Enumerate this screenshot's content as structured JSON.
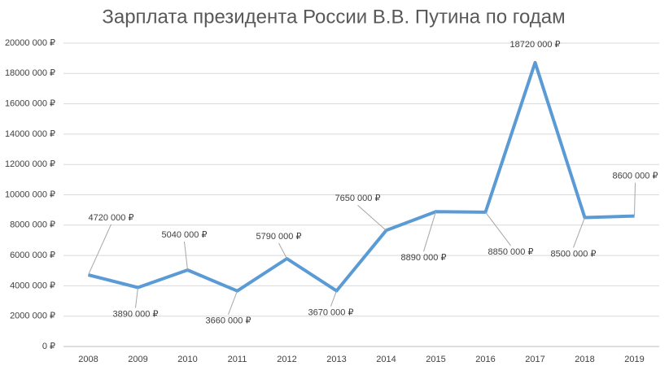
{
  "chart_data": {
    "type": "line",
    "title": "Зарплата президента России В.В. Путина по годам",
    "categories": [
      "2008",
      "2009",
      "2010",
      "2011",
      "2012",
      "2013",
      "2014",
      "2015",
      "2016",
      "2017",
      "2018",
      "2019"
    ],
    "series": [
      {
        "name": "Зарплата",
        "color": "#5b9bd5",
        "values": [
          4720000,
          3890000,
          5040000,
          3660000,
          5790000,
          3670000,
          7650000,
          8890000,
          8850000,
          18720000,
          8500000,
          8600000
        ],
        "value_labels": [
          "4720 000 ₽",
          "3890 000 ₽",
          "5040 000 ₽",
          "3660 000 ₽",
          "5790 000 ₽",
          "3670 000 ₽",
          "7650 000 ₽",
          "8890 000 ₽",
          "8850 000 ₽",
          "18720 000 ₽",
          "8500 000 ₽",
          "8600 000 ₽"
        ]
      }
    ],
    "ylim": [
      0,
      20000000
    ],
    "yticks": [
      {
        "value": 0,
        "label": "0 ₽"
      },
      {
        "value": 2000000,
        "label": "2000 000 ₽"
      },
      {
        "value": 4000000,
        "label": "4000 000 ₽"
      },
      {
        "value": 6000000,
        "label": "6000 000 ₽"
      },
      {
        "value": 8000000,
        "label": "8000 000 ₽"
      },
      {
        "value": 10000000,
        "label": "10000 000 ₽"
      },
      {
        "value": 12000000,
        "label": "12000 000 ₽"
      },
      {
        "value": 14000000,
        "label": "14000 000 ₽"
      },
      {
        "value": 16000000,
        "label": "16000 000 ₽"
      },
      {
        "value": 18000000,
        "label": "18000 000 ₽"
      },
      {
        "value": 20000000,
        "label": "20000 000 ₽"
      }
    ],
    "grid": true
  }
}
